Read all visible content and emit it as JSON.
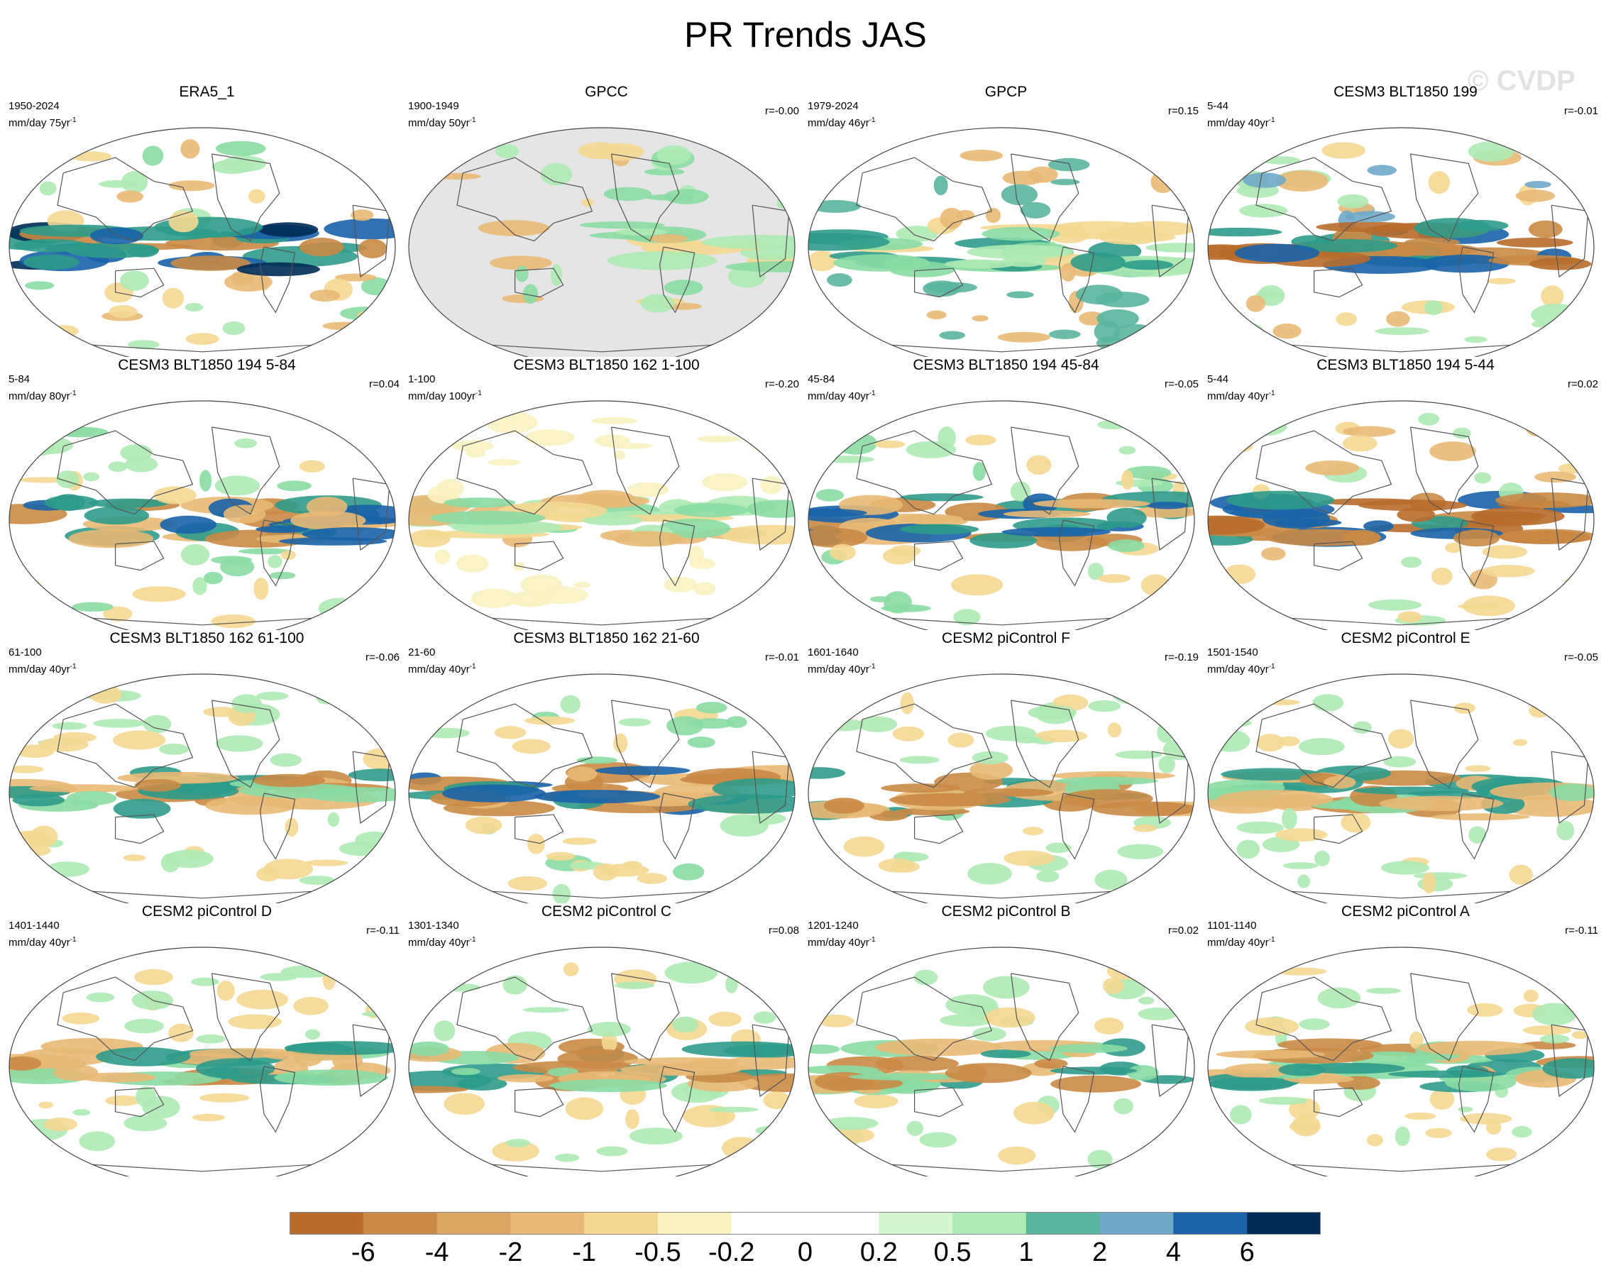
{
  "title": "PR Trends JAS",
  "watermark": "© CVDP",
  "panels": [
    {
      "title": "ERA5_1",
      "period": "1950-2024",
      "units": "mm/day 75yr",
      "corr": "",
      "mask": false,
      "colors": [
        "#c98a45",
        "#2e9b8a",
        "#1a63a8",
        "#002b55",
        "#f4d892",
        "#aeeab4",
        "#89dca4",
        "#e8b976"
      ]
    },
    {
      "title": "GPCC",
      "period": "1900-1949",
      "units": "mm/day 50yr",
      "corr": "r=-0.00",
      "mask": true,
      "colors": [
        "#f4d892",
        "#aeeab4",
        "#e8b976",
        "#89dca4"
      ]
    },
    {
      "title": "GPCP",
      "period": "1979-2024",
      "units": "mm/day 46yr",
      "corr": "r=0.15",
      "mask": false,
      "colors": [
        "#2e9b8a",
        "#89dca4",
        "#aeeab4",
        "#f4d892",
        "#e8b976",
        "#5ab59e"
      ]
    },
    {
      "title": "CESM3 BLT1850 199",
      "period": "5-44",
      "units": "mm/day 40yr",
      "corr": "r=-0.01",
      "mask": false,
      "colors": [
        "#b86b2b",
        "#c98a45",
        "#1a63a8",
        "#2e9b8a",
        "#e8b976",
        "#6fa8c8",
        "#aeeab4",
        "#f4d892"
      ]
    },
    {
      "title": "CESM3 BLT1850 194 5-84",
      "period": "5-84",
      "units": "mm/day 80yr",
      "corr": "r=0.04",
      "mask": false,
      "colors": [
        "#c98a45",
        "#1a63a8",
        "#2e9b8a",
        "#e8b976",
        "#f4d892",
        "#aeeab4",
        "#89dca4"
      ]
    },
    {
      "title": "CESM3 BLT1850 162 1-100",
      "period": "1-100",
      "units": "mm/day 100yr",
      "corr": "r=-0.20",
      "mask": false,
      "colors": [
        "#e8b976",
        "#f4d892",
        "#aeeab4",
        "#89dca4",
        "#fbf2c2"
      ]
    },
    {
      "title": "CESM3 BLT1850 194 45-84",
      "period": "45-84",
      "units": "mm/day 40yr",
      "corr": "r=-0.05",
      "mask": false,
      "colors": [
        "#c98a45",
        "#2e9b8a",
        "#1a63a8",
        "#e8b976",
        "#f4d892",
        "#aeeab4",
        "#89dca4"
      ]
    },
    {
      "title": "CESM3 BLT1850 194 5-44",
      "period": "5-44",
      "units": "mm/day 40yr",
      "corr": "r=0.02",
      "mask": false,
      "colors": [
        "#b86b2b",
        "#1a63a8",
        "#2e9b8a",
        "#c98a45",
        "#e8b976",
        "#aeeab4",
        "#f4d892"
      ]
    },
    {
      "title": "CESM3 BLT1850 162 61-100",
      "period": "61-100",
      "units": "mm/day 40yr",
      "corr": "r=-0.06",
      "mask": false,
      "colors": [
        "#2e9b8a",
        "#c98a45",
        "#89dca4",
        "#e8b976",
        "#f4d892",
        "#aeeab4"
      ]
    },
    {
      "title": "CESM3 BLT1850 162 21-60",
      "period": "21-60",
      "units": "mm/day 40yr",
      "corr": "r=-0.01",
      "mask": false,
      "colors": [
        "#c98a45",
        "#2e9b8a",
        "#1a63a8",
        "#e8b976",
        "#89dca4",
        "#f4d892",
        "#aeeab4"
      ]
    },
    {
      "title": "CESM2 piControl F",
      "period": "1601-1640",
      "units": "mm/day 40yr",
      "corr": "r=-0.19",
      "mask": false,
      "colors": [
        "#2e9b8a",
        "#c98a45",
        "#e8b976",
        "#89dca4",
        "#f4d892",
        "#aeeab4"
      ]
    },
    {
      "title": "CESM2 piControl E",
      "period": "1501-1540",
      "units": "mm/day 40yr",
      "corr": "r=-0.05",
      "mask": false,
      "colors": [
        "#c98a45",
        "#2e9b8a",
        "#e8b976",
        "#89dca4",
        "#f4d892",
        "#aeeab4"
      ]
    },
    {
      "title": "CESM2 piControl D",
      "period": "1401-1440",
      "units": "mm/day 40yr",
      "corr": "r=-0.11",
      "mask": false,
      "colors": [
        "#c98a45",
        "#2e9b8a",
        "#e8b976",
        "#89dca4",
        "#f4d892",
        "#aeeab4"
      ]
    },
    {
      "title": "CESM2 piControl C",
      "period": "1301-1340",
      "units": "mm/day 40yr",
      "corr": "r=0.08",
      "mask": false,
      "colors": [
        "#c98a45",
        "#2e9b8a",
        "#e8b976",
        "#89dca4",
        "#f4d892",
        "#aeeab4"
      ]
    },
    {
      "title": "CESM2 piControl B",
      "period": "1201-1240",
      "units": "mm/day 40yr",
      "corr": "r=0.02",
      "mask": false,
      "colors": [
        "#2e9b8a",
        "#c98a45",
        "#e8b976",
        "#89dca4",
        "#f4d892",
        "#aeeab4"
      ]
    },
    {
      "title": "CESM2 piControl A",
      "period": "1101-1140",
      "units": "mm/day 40yr",
      "corr": "r=-0.11",
      "mask": false,
      "colors": [
        "#c98a45",
        "#2e9b8a",
        "#e8b976",
        "#89dca4",
        "#f4d892",
        "#aeeab4"
      ]
    }
  ],
  "colorbar": {
    "colors": [
      "#b86b2b",
      "#c98a45",
      "#dba562",
      "#e8b976",
      "#f4d892",
      "#fbf2c2",
      "#ffffff",
      "#ffffff",
      "#d4f7cf",
      "#aeeab4",
      "#5ab59e",
      "#6fa8c8",
      "#1a63a8",
      "#002b55"
    ],
    "labels": [
      "-6",
      "-4",
      "-2",
      "-1",
      "-0.5",
      "-0.2",
      "0",
      "0.2",
      "0.5",
      "1",
      "2",
      "4",
      "6"
    ]
  }
}
